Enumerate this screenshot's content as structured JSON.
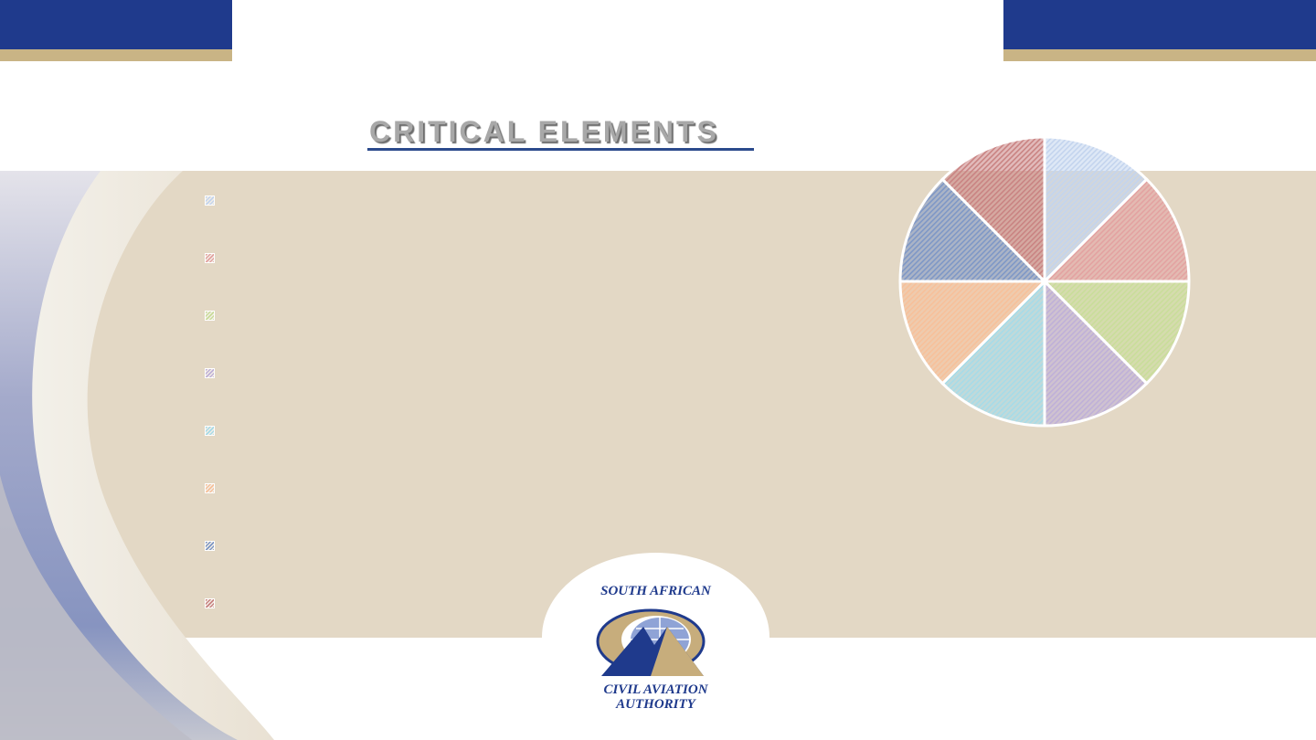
{
  "slide": {
    "title": "CRITICAL ELEMENTS"
  },
  "logo": {
    "line1": "SOUTH AFRICAN",
    "line2": "CIVIL AVIATION",
    "line3": "AUTHORITY"
  },
  "chart_data": {
    "type": "pie",
    "values": [
      1,
      1,
      1,
      1,
      1,
      1,
      1,
      1
    ],
    "colors": [
      "#c3d4ee",
      "#e3a2a1",
      "#c9dd9a",
      "#bfb0d8",
      "#a6dbe8",
      "#f7c09a",
      "#7e97c6",
      "#c98382"
    ],
    "legend_placement": "left"
  }
}
